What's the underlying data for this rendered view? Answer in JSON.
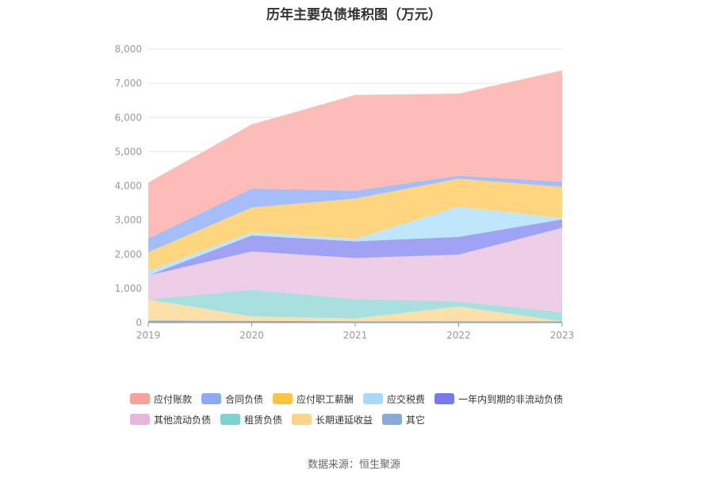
{
  "chart_data": {
    "type": "area",
    "stacked": true,
    "title": "历年主要负债堆积图（万元）",
    "x": [
      "2019",
      "2020",
      "2021",
      "2022",
      "2023"
    ],
    "yticks": [
      "0",
      "1,000",
      "2,000",
      "3,000",
      "4,000",
      "5,000",
      "6,000",
      "7,000",
      "8,000"
    ],
    "ylim": [
      0,
      8000
    ],
    "grid": true,
    "legend_position": "bottom",
    "series": [
      {
        "name": "其它",
        "color": "#8eb0d8",
        "values": [
          60,
          50,
          40,
          40,
          40
        ]
      },
      {
        "name": "长期递延收益",
        "color": "#fbe0aa",
        "values": [
          620,
          130,
          80,
          430,
          0
        ]
      },
      {
        "name": "租赁负债",
        "color": "#a8e0e0",
        "values": [
          0,
          780,
          570,
          150,
          270
        ]
      },
      {
        "name": "其他流动负债",
        "color": "#eecde6",
        "values": [
          700,
          1120,
          1200,
          1370,
          2460
        ]
      },
      {
        "name": "一年内到期的非流动负债",
        "color": "#a0a3f3",
        "values": [
          0,
          470,
          490,
          520,
          250
        ]
      },
      {
        "name": "应交税费",
        "color": "#bfe6fb",
        "values": [
          130,
          100,
          70,
          880,
          40
        ]
      },
      {
        "name": "应付职工薪酬",
        "color": "#fed680",
        "values": [
          550,
          720,
          1180,
          820,
          910
        ]
      },
      {
        "name": "合同负债",
        "color": "#a5bdf9",
        "values": [
          400,
          550,
          230,
          90,
          150
        ]
      },
      {
        "name": "应付账款",
        "color": "#fcbdb8",
        "values": [
          1640,
          1880,
          2800,
          2400,
          3260
        ]
      }
    ],
    "legend": [
      {
        "name": "应付账款",
        "color": "#f8a299"
      },
      {
        "name": "合同负债",
        "color": "#8ba9f5"
      },
      {
        "name": "应付职工薪酬",
        "color": "#fec340"
      },
      {
        "name": "应交税费",
        "color": "#aad9f8"
      },
      {
        "name": "一年内到期的非流动负债",
        "color": "#7779ec"
      },
      {
        "name": "其他流动负债",
        "color": "#e6b6dd"
      },
      {
        "name": "租赁负债",
        "color": "#7fd2d2"
      },
      {
        "name": "长期递延收益",
        "color": "#fbd48c"
      },
      {
        "name": "其它",
        "color": "#8aaad6"
      }
    ]
  },
  "source": "数据来源：恒生聚源"
}
